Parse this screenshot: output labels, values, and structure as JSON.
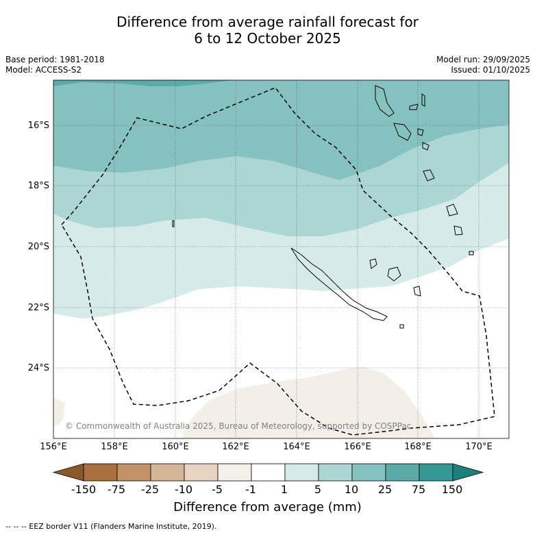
{
  "title": {
    "line1": "Difference from average rainfall forecast for",
    "line2": "6 to 12 October 2025"
  },
  "meta_left": {
    "base_period": "Base period: 1981-2018",
    "model": "Model: ACCESS-S2"
  },
  "meta_right": {
    "model_run": "Model run: 29/09/2025",
    "issued": "Issued: 01/10/2025"
  },
  "copyright": "© Commonwealth of Australia 2025, Bureau of Meteorology, supported by COSPPac",
  "lat_labels": [
    "16°S",
    "18°S",
    "20°S",
    "22°S",
    "24°S"
  ],
  "lon_labels": [
    "156°E",
    "158°E",
    "160°E",
    "162°E",
    "164°E",
    "166°E",
    "168°E",
    "170°E"
  ],
  "colorbar": {
    "ticks": [
      "-150",
      "-75",
      "-25",
      "-10",
      "-5",
      "-1",
      "1",
      "5",
      "10",
      "25",
      "75",
      "150"
    ],
    "colors": [
      "#a97040",
      "#c29266",
      "#d5b597",
      "#e8d3c2",
      "#f4efe9",
      "#ffffff",
      "#d6eae9",
      "#acd6d4",
      "#84c1bf",
      "#5aaba9",
      "#349995"
    ],
    "under_color": "#8b5a2b",
    "over_color": "#1f7f7b",
    "title": "Difference from average (mm)"
  },
  "footnote": "--  --  -- EEZ border V11 (Flanders Marine Institute, 2019)."
}
